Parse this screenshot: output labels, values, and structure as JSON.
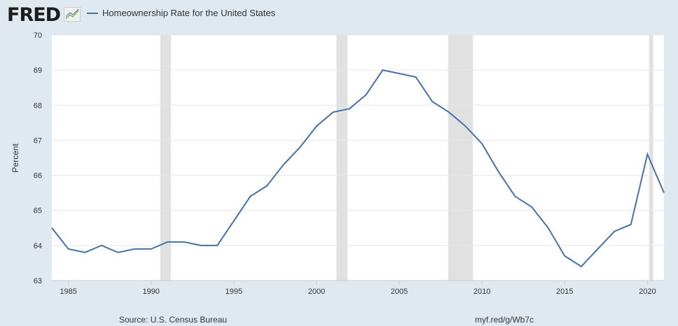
{
  "header": {
    "logo": "FRED",
    "legend_label": "Homeownership Rate for the United States"
  },
  "footer": {
    "source": "Source: U.S. Census Bureau",
    "link": "myf.red/g/Wb7c"
  },
  "colors": {
    "line": "#4572a7",
    "recession": "#e1e1e1",
    "background": "#e1e9f0"
  },
  "chart_data": {
    "type": "line",
    "title": "Homeownership Rate for the United States",
    "ylabel": "Percent",
    "xlabel": "",
    "ylim": [
      63,
      70
    ],
    "xlim": [
      1984,
      2021
    ],
    "yticks": [
      63,
      64,
      65,
      66,
      67,
      68,
      69,
      70
    ],
    "xticks": [
      1985,
      1990,
      1995,
      2000,
      2005,
      2010,
      2015,
      2020
    ],
    "x": [
      1984,
      1985,
      1986,
      1987,
      1988,
      1989,
      1990,
      1991,
      1992,
      1993,
      1994,
      1995,
      1996,
      1997,
      1998,
      1999,
      2000,
      2001,
      2002,
      2003,
      2004,
      2005,
      2006,
      2007,
      2008,
      2009,
      2010,
      2011,
      2012,
      2013,
      2014,
      2015,
      2016,
      2017,
      2018,
      2019,
      2020,
      2021
    ],
    "series": [
      {
        "name": "Homeownership Rate for the United States",
        "values": [
          64.5,
          63.9,
          63.8,
          64.0,
          63.8,
          63.9,
          63.9,
          64.1,
          64.1,
          64.0,
          64.0,
          64.7,
          65.4,
          65.7,
          66.3,
          66.8,
          67.4,
          67.8,
          67.9,
          68.3,
          69.0,
          68.9,
          68.8,
          68.1,
          67.8,
          67.4,
          66.9,
          66.1,
          65.4,
          65.1,
          64.5,
          63.7,
          63.4,
          63.9,
          64.4,
          64.6,
          66.6,
          65.5
        ]
      }
    ],
    "recessions": [
      [
        1990.55,
        1991.2
      ],
      [
        2001.2,
        2001.87
      ],
      [
        2007.95,
        2009.45
      ],
      [
        2020.1,
        2020.35
      ]
    ],
    "grid": true,
    "legend_position": "top-left"
  }
}
